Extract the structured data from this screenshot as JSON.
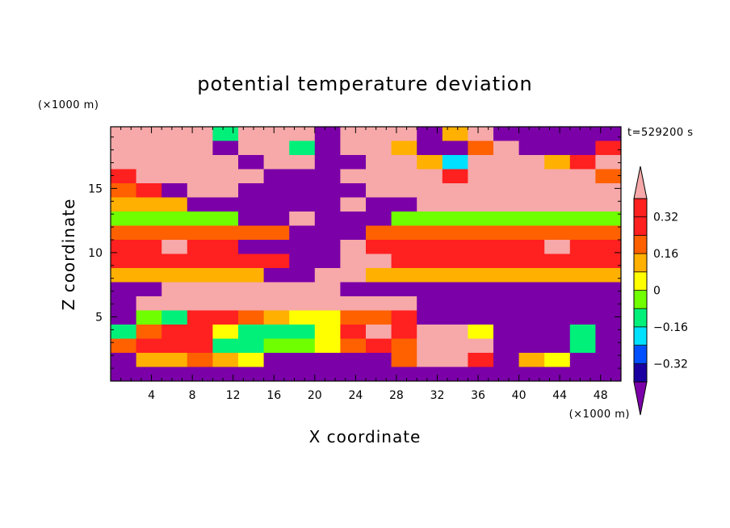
{
  "chart_data": {
    "type": "heatmap",
    "title": "potential temperature deviation",
    "xlabel": "X coordinate",
    "ylabel": "Z coordinate",
    "x_unit": "(×1000 m)",
    "y_unit": "(×1000 m)",
    "timestamp": "t=529200 s",
    "xlim": [
      0,
      50
    ],
    "ylim": [
      0,
      19.8
    ],
    "x_ticks": [
      4,
      8,
      12,
      16,
      20,
      24,
      28,
      32,
      36,
      40,
      44,
      48
    ],
    "y_ticks": [
      5,
      10,
      15
    ],
    "colorbar": {
      "levels": [
        -0.4,
        -0.32,
        -0.24,
        -0.16,
        -0.08,
        0,
        0.08,
        0.16,
        0.24,
        0.32,
        0.4
      ],
      "labeled_levels": [
        {
          "value": 0.32,
          "label": "0.32"
        },
        {
          "value": 0.16,
          "label": "0.16"
        },
        {
          "value": 0,
          "label": "0"
        },
        {
          "value": -0.16,
          "label": "−0.16"
        },
        {
          "value": -0.32,
          "label": "−0.32"
        }
      ],
      "colors": [
        "#7b00a8",
        "#1a00a0",
        "#0050ff",
        "#00e0ff",
        "#00f07a",
        "#70ff00",
        "#ffff00",
        "#ffb000",
        "#ff6000",
        "#ff2020",
        "#f7a8a8",
        "#7b00a8"
      ],
      "over_color": "#f7a8a8",
      "under_color": "#7b00a8"
    },
    "field": [
      [
        0.5,
        0.5,
        0.5,
        0.5,
        -0.1,
        0.5,
        0.5,
        0.5,
        -0.5,
        0.5,
        0.5,
        0.5,
        -0.5,
        0.1,
        0.5,
        -0.5,
        -0.5,
        -0.5,
        -0.5,
        -0.5
      ],
      [
        0.5,
        0.5,
        0.5,
        0.5,
        -0.5,
        0.5,
        0.5,
        -0.1,
        -0.5,
        0.5,
        0.5,
        0.1,
        -0.5,
        -0.5,
        0.2,
        0.5,
        -0.5,
        -0.5,
        -0.5,
        0.3
      ],
      [
        0.5,
        0.5,
        0.5,
        0.5,
        0.5,
        -0.5,
        0.5,
        0.5,
        -0.5,
        -0.5,
        0.5,
        0.5,
        0.1,
        -0.2,
        0.4,
        0.5,
        0.5,
        0.1,
        0.3,
        0.5
      ],
      [
        0.3,
        0.5,
        0.5,
        0.5,
        0.5,
        0.5,
        -0.5,
        -0.5,
        -0.5,
        0.5,
        0.5,
        0.5,
        0.5,
        0.3,
        0.5,
        0.5,
        0.5,
        0.4,
        0.5,
        0.2
      ],
      [
        0.2,
        0.3,
        -0.5,
        0.5,
        0.5,
        -0.5,
        -0.5,
        -0.5,
        -0.5,
        -0.5,
        0.5,
        0.5,
        0.5,
        0.5,
        0.5,
        0.5,
        0.5,
        0.5,
        0.5,
        0.5
      ],
      [
        0.1,
        0.1,
        0.1,
        -0.5,
        -0.5,
        -0.5,
        -0.5,
        -0.5,
        -0.5,
        0.5,
        -0.5,
        -0.5,
        0.5,
        0.5,
        0.5,
        0.5,
        0.5,
        0.5,
        0.5,
        0.5
      ],
      [
        -0.05,
        -0.05,
        -0.05,
        -0.05,
        -0.05,
        -0.5,
        -0.5,
        0.5,
        -0.5,
        -0.5,
        -0.5,
        -0.05,
        -0.05,
        -0.05,
        -0.05,
        -0.05,
        -0.05,
        -0.05,
        -0.05,
        -0.05
      ],
      [
        0.2,
        0.2,
        0.2,
        0.2,
        0.2,
        0.2,
        0.2,
        -0.5,
        -0.5,
        -0.5,
        0.2,
        0.2,
        0.2,
        0.2,
        0.2,
        0.2,
        0.2,
        0.2,
        0.2,
        0.2
      ],
      [
        0.35,
        0.35,
        0.5,
        0.35,
        0.35,
        -0.5,
        -0.5,
        -0.5,
        -0.5,
        0.5,
        0.35,
        0.35,
        0.35,
        0.35,
        0.35,
        0.35,
        0.35,
        0.5,
        0.35,
        0.35
      ],
      [
        0.3,
        0.3,
        0.3,
        0.3,
        0.3,
        0.3,
        0.3,
        -0.5,
        -0.5,
        0.5,
        0.5,
        0.3,
        0.3,
        0.3,
        0.3,
        0.3,
        0.3,
        0.3,
        0.3,
        0.3
      ],
      [
        0.15,
        0.15,
        0.15,
        0.15,
        0.15,
        0.15,
        -0.5,
        -0.5,
        0.5,
        0.5,
        0.15,
        0.15,
        0.15,
        0.15,
        0.15,
        0.15,
        0.15,
        0.15,
        0.15,
        0.15
      ],
      [
        -0.5,
        -0.5,
        0.5,
        0.5,
        0.5,
        0.5,
        0.5,
        0.5,
        0.5,
        -0.5,
        -0.5,
        -0.5,
        -0.5,
        -0.5,
        -0.5,
        -0.5,
        -0.5,
        -0.5,
        -0.5,
        -0.5
      ],
      [
        -0.5,
        0.5,
        0.5,
        0.5,
        0.5,
        0.5,
        0.5,
        0.5,
        0.5,
        0.5,
        0.5,
        0.5,
        -0.5,
        -0.5,
        -0.5,
        -0.5,
        -0.5,
        -0.5,
        -0.5,
        -0.5
      ],
      [
        -0.5,
        -0.05,
        -0.1,
        0.3,
        0.3,
        0.2,
        0.1,
        0.0,
        0.0,
        0.2,
        0.2,
        0.3,
        -0.5,
        -0.5,
        -0.5,
        -0.5,
        -0.5,
        -0.5,
        -0.5,
        -0.5
      ],
      [
        -0.1,
        0.2,
        0.3,
        0.35,
        0.0,
        -0.1,
        -0.1,
        -0.1,
        0.0,
        0.3,
        0.4,
        0.3,
        0.5,
        0.5,
        0.0,
        -0.5,
        -0.5,
        -0.5,
        -0.1,
        -0.5
      ],
      [
        0.2,
        0.3,
        0.3,
        0.3,
        -0.1,
        -0.1,
        -0.05,
        -0.05,
        0.0,
        0.2,
        0.3,
        0.2,
        0.5,
        0.5,
        0.5,
        -0.5,
        -0.5,
        -0.5,
        -0.1,
        -0.5
      ],
      [
        -0.5,
        0.1,
        0.1,
        0.2,
        0.1,
        0.0,
        -0.5,
        -0.5,
        -0.5,
        -0.5,
        -0.5,
        0.2,
        0.4,
        0.4,
        0.3,
        -0.5,
        0.1,
        0.0,
        -0.5,
        -0.5
      ],
      [
        -0.5,
        -0.5,
        -0.5,
        -0.5,
        -0.5,
        -0.5,
        -0.5,
        -0.5,
        -0.5,
        -0.5,
        -0.5,
        -0.5,
        -0.5,
        -0.5,
        -0.5,
        -0.5,
        -0.5,
        -0.5,
        -0.5,
        -0.5
      ]
    ]
  }
}
